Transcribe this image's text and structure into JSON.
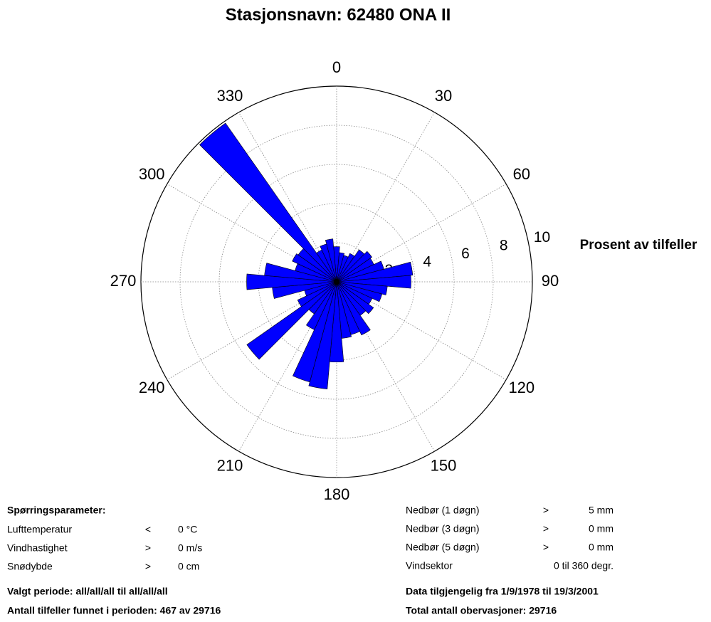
{
  "chart_data": {
    "type": "polar-bar",
    "title": "Stasjonsnavn: 62480 ONA II",
    "ylabel": "Prosent av tilfeller",
    "x": [
      0,
      10,
      20,
      30,
      40,
      50,
      60,
      70,
      80,
      90,
      100,
      110,
      120,
      130,
      140,
      150,
      160,
      170,
      180,
      190,
      200,
      210,
      220,
      230,
      240,
      250,
      260,
      270,
      280,
      290,
      300,
      310,
      320,
      330,
      340,
      350
    ],
    "values": [
      1.8,
      1.5,
      1.4,
      1.6,
      2.0,
      2.2,
      2.1,
      2.5,
      3.9,
      3.8,
      2.6,
      2.4,
      2.0,
      2.3,
      2.1,
      3.0,
      2.8,
      2.9,
      4.1,
      5.5,
      5.3,
      2.7,
      2.0,
      5.6,
      2.2,
      1.7,
      3.3,
      4.6,
      3.7,
      2.2,
      2.5,
      2.4,
      9.9,
      1.8,
      2.0,
      2.2
    ],
    "color": "#0000ff",
    "sector_width": 10,
    "xticks": [
      0,
      30,
      60,
      90,
      120,
      150,
      180,
      210,
      240,
      270,
      300,
      330
    ],
    "ylim": [
      0,
      10
    ],
    "yticks": [
      2,
      4,
      6,
      8,
      10
    ],
    "grid": true
  },
  "info": {
    "heading": "Spørringsparameter:",
    "left_rows": [
      [
        "Lufttemperatur",
        "<",
        "0 °C"
      ],
      [
        "Vindhastighet",
        ">",
        "0 m/s"
      ],
      [
        "Snødybde",
        ">",
        "0 cm"
      ]
    ],
    "right_rows": [
      [
        "Nedbør (1 døgn)",
        ">",
        "5 mm"
      ],
      [
        "Nedbør (3 døgn)",
        ">",
        "0 mm"
      ],
      [
        "Nedbør (5 døgn)",
        ">",
        "0 mm"
      ],
      [
        "Vindsektor",
        "0 til 360 degr."
      ]
    ],
    "footer_left": [
      "Valgt periode: all/all/all til all/all/all",
      "Antall tilfeller funnet i perioden: 467 av 29716"
    ],
    "footer_right": [
      "Data tilgjengelig fra 1/9/1978 til 19/3/2001",
      "Total antall obervasjoner: 29716"
    ]
  }
}
